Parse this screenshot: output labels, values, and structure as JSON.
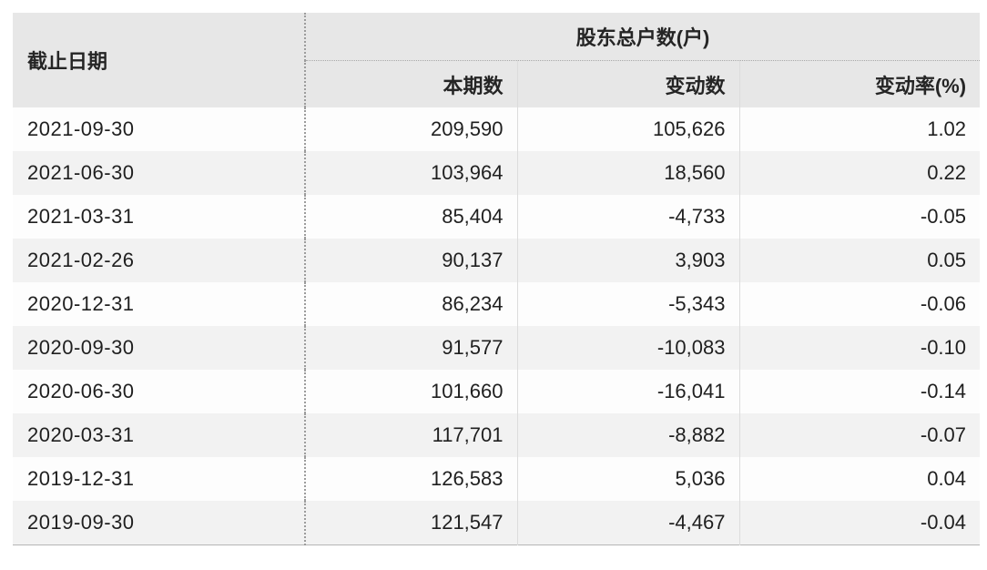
{
  "table": {
    "header": {
      "date_col": "截止日期",
      "group_title": "股东总户数(户)",
      "sub_cols": [
        "本期数",
        "变动数",
        "变动率(%)"
      ]
    },
    "rows": [
      {
        "date": "2021-09-30",
        "current": "209,590",
        "change": "105,626",
        "rate": "1.02"
      },
      {
        "date": "2021-06-30",
        "current": "103,964",
        "change": "18,560",
        "rate": "0.22"
      },
      {
        "date": "2021-03-31",
        "current": "85,404",
        "change": "-4,733",
        "rate": "-0.05"
      },
      {
        "date": "2021-02-26",
        "current": "90,137",
        "change": "3,903",
        "rate": "0.05"
      },
      {
        "date": "2020-12-31",
        "current": "86,234",
        "change": "-5,343",
        "rate": "-0.06"
      },
      {
        "date": "2020-09-30",
        "current": "91,577",
        "change": "-10,083",
        "rate": "-0.10"
      },
      {
        "date": "2020-06-30",
        "current": "101,660",
        "change": "-16,041",
        "rate": "-0.14"
      },
      {
        "date": "2020-03-31",
        "current": "117,701",
        "change": "-8,882",
        "rate": "-0.07"
      },
      {
        "date": "2019-12-31",
        "current": "126,583",
        "change": "5,036",
        "rate": "0.04"
      },
      {
        "date": "2019-09-30",
        "current": "121,547",
        "change": "-4,467",
        "rate": "-0.04"
      }
    ]
  },
  "colors": {
    "header_bg": "#e7e7e7",
    "row_odd_bg": "#fdfdfd",
    "row_even_bg": "#f2f2f2",
    "text": "#1f1f1f",
    "dotted_divider": "#9c9c9c",
    "light_divider": "#dcdcdc",
    "bottom_border": "#b5b5b5"
  },
  "chart_data": {
    "type": "table",
    "title": "股东总户数(户)",
    "columns": [
      "截止日期",
      "本期数",
      "变动数",
      "变动率(%)"
    ],
    "rows": [
      [
        "2021-09-30",
        209590,
        105626,
        1.02
      ],
      [
        "2021-06-30",
        103964,
        18560,
        0.22
      ],
      [
        "2021-03-31",
        85404,
        -4733,
        -0.05
      ],
      [
        "2021-02-26",
        90137,
        3903,
        0.05
      ],
      [
        "2020-12-31",
        86234,
        -5343,
        -0.06
      ],
      [
        "2020-09-30",
        91577,
        -10083,
        -0.1
      ],
      [
        "2020-06-30",
        101660,
        -16041,
        -0.14
      ],
      [
        "2020-03-31",
        117701,
        -8882,
        -0.07
      ],
      [
        "2019-12-31",
        126583,
        5036,
        0.04
      ],
      [
        "2019-09-30",
        121547,
        -4467,
        -0.04
      ]
    ],
    "layout": {
      "header_grouped": true,
      "group_span_columns": [
        "本期数",
        "变动数",
        "变动率(%)"
      ],
      "numeric_alignment": "right",
      "zebra_striping": true
    }
  }
}
